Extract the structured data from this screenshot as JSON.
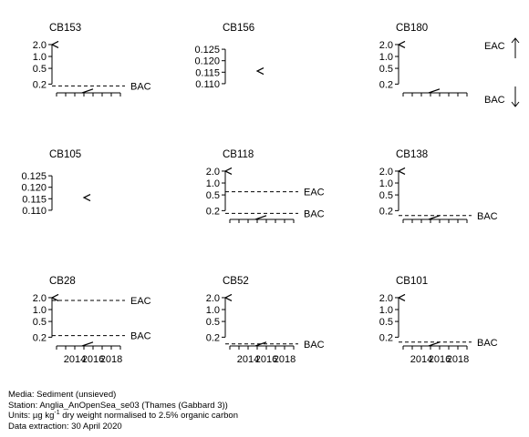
{
  "chart_data": [
    {
      "type": "line",
      "title": "CB153",
      "yscale": "log",
      "yticks": [
        0.2,
        0.5,
        1.0,
        2.0
      ],
      "ytick_labels": [
        "0.2",
        "0.5",
        "1.0",
        "2.0"
      ],
      "ylim": [
        0.12,
        2.6
      ],
      "xlim": [
        2011.5,
        2019.5
      ],
      "xticks": [
        2012,
        2013,
        2014,
        2015,
        2016,
        2017,
        2018,
        2019
      ],
      "xtick_labels": [],
      "xlabeled": false,
      "reference_lines": [
        {
          "name": "BAC",
          "value": 0.18
        }
      ],
      "series": [
        {
          "x": [
            2011.5,
            2012.2
          ],
          "y": [
            2.0,
            2.0
          ],
          "marker": "less-than"
        },
        {
          "x": [
            2014.8,
            2016.0
          ],
          "y": [
            0.12,
            0.15
          ],
          "marker": "none"
        }
      ],
      "arrows": []
    },
    {
      "type": "line",
      "title": "CB156",
      "yscale": "linear",
      "yticks": [
        0.11,
        0.115,
        0.12,
        0.125
      ],
      "ytick_labels": [
        "0.110",
        "0.115",
        "0.120",
        "0.125"
      ],
      "ylim": [
        0.106,
        0.129
      ],
      "xlim": [
        2011.5,
        2019.5
      ],
      "xticks": [],
      "xtick_labels": [],
      "xlabeled": false,
      "reference_lines": [],
      "series": [
        {
          "x": [
            2015.0
          ],
          "y": [
            0.1155
          ],
          "marker": "less-than"
        }
      ],
      "arrows": []
    },
    {
      "type": "line",
      "title": "CB180",
      "yscale": "log",
      "yticks": [
        0.2,
        0.5,
        1.0,
        2.0
      ],
      "ytick_labels": [
        "0.2",
        "0.5",
        "1.0",
        "2.0"
      ],
      "ylim": [
        0.12,
        2.6
      ],
      "xlim": [
        2011.5,
        2019.5
      ],
      "xticks": [
        2012,
        2013,
        2014,
        2015,
        2016,
        2017,
        2018,
        2019
      ],
      "xtick_labels": [],
      "xlabeled": false,
      "reference_lines": [],
      "series": [
        {
          "x": [
            2011.5,
            2012.2
          ],
          "y": [
            2.0,
            2.0
          ],
          "marker": "less-than"
        },
        {
          "x": [
            2014.8,
            2016.0
          ],
          "y": [
            0.12,
            0.15
          ],
          "marker": "none"
        }
      ],
      "arrows": [
        {
          "name": "EAC",
          "direction": "up"
        },
        {
          "name": "BAC",
          "direction": "down"
        }
      ]
    },
    {
      "type": "line",
      "title": "CB105",
      "yscale": "linear",
      "yticks": [
        0.11,
        0.115,
        0.12,
        0.125
      ],
      "ytick_labels": [
        "0.110",
        "0.115",
        "0.120",
        "0.125"
      ],
      "ylim": [
        0.106,
        0.129
      ],
      "xlim": [
        2011.5,
        2019.5
      ],
      "xticks": [],
      "xtick_labels": [],
      "xlabeled": false,
      "reference_lines": [],
      "series": [
        {
          "x": [
            2015.0
          ],
          "y": [
            0.1155
          ],
          "marker": "less-than"
        }
      ],
      "arrows": []
    },
    {
      "type": "line",
      "title": "CB118",
      "yscale": "log",
      "yticks": [
        0.2,
        0.5,
        1.0,
        2.0
      ],
      "ytick_labels": [
        "0.2",
        "0.5",
        "1.0",
        "2.0"
      ],
      "ylim": [
        0.12,
        2.6
      ],
      "xlim": [
        2011.5,
        2019.5
      ],
      "xticks": [
        2012,
        2013,
        2014,
        2015,
        2016,
        2017,
        2018,
        2019
      ],
      "xtick_labels": [],
      "xlabeled": false,
      "reference_lines": [
        {
          "name": "EAC",
          "value": 0.6
        },
        {
          "name": "BAC",
          "value": 0.17
        }
      ],
      "series": [
        {
          "x": [
            2011.5,
            2012.2
          ],
          "y": [
            2.0,
            2.0
          ],
          "marker": "less-than"
        },
        {
          "x": [
            2014.8,
            2016.0
          ],
          "y": [
            0.12,
            0.15
          ],
          "marker": "none"
        }
      ],
      "arrows": []
    },
    {
      "type": "line",
      "title": "CB138",
      "yscale": "log",
      "yticks": [
        0.2,
        0.5,
        1.0,
        2.0
      ],
      "ytick_labels": [
        "0.2",
        "0.5",
        "1.0",
        "2.0"
      ],
      "ylim": [
        0.12,
        2.6
      ],
      "xlim": [
        2011.5,
        2019.5
      ],
      "xticks": [
        2012,
        2013,
        2014,
        2015,
        2016,
        2017,
        2018,
        2019
      ],
      "xtick_labels": [],
      "xlabeled": false,
      "reference_lines": [
        {
          "name": "BAC",
          "value": 0.15
        }
      ],
      "series": [
        {
          "x": [
            2011.5,
            2012.2
          ],
          "y": [
            2.0,
            2.0
          ],
          "marker": "less-than"
        },
        {
          "x": [
            2014.8,
            2016.0
          ],
          "y": [
            0.12,
            0.15
          ],
          "marker": "none"
        }
      ],
      "arrows": []
    },
    {
      "type": "line",
      "title": "CB28",
      "yscale": "log",
      "yticks": [
        0.2,
        0.5,
        1.0,
        2.0
      ],
      "ytick_labels": [
        "0.2",
        "0.5",
        "1.0",
        "2.0"
      ],
      "ylim": [
        0.12,
        2.6
      ],
      "xlim": [
        2011.5,
        2019.5
      ],
      "xticks": [
        2012,
        2013,
        2014,
        2015,
        2016,
        2017,
        2018,
        2019
      ],
      "xtick_labels": [
        "2014",
        "2016",
        "2018"
      ],
      "xlabeled": true,
      "reference_lines": [
        {
          "name": "EAC",
          "value": 1.7
        },
        {
          "name": "BAC",
          "value": 0.22
        }
      ],
      "series": [
        {
          "x": [
            2011.5,
            2012.2
          ],
          "y": [
            2.0,
            2.0
          ],
          "marker": "less-than"
        },
        {
          "x": [
            2014.8,
            2016.0
          ],
          "y": [
            0.12,
            0.15
          ],
          "marker": "none"
        }
      ],
      "arrows": []
    },
    {
      "type": "line",
      "title": "CB52",
      "yscale": "log",
      "yticks": [
        0.2,
        0.5,
        1.0,
        2.0
      ],
      "ytick_labels": [
        "0.2",
        "0.5",
        "1.0",
        "2.0"
      ],
      "ylim": [
        0.12,
        2.6
      ],
      "xlim": [
        2011.5,
        2019.5
      ],
      "xticks": [
        2012,
        2013,
        2014,
        2015,
        2016,
        2017,
        2018,
        2019
      ],
      "xtick_labels": [
        "2014",
        "2016",
        "2018"
      ],
      "xlabeled": true,
      "reference_lines": [
        {
          "name": "BAC",
          "value": 0.135
        }
      ],
      "series": [
        {
          "x": [
            2011.5,
            2012.2
          ],
          "y": [
            2.0,
            2.0
          ],
          "marker": "less-than"
        },
        {
          "x": [
            2014.8,
            2016.0
          ],
          "y": [
            0.12,
            0.15
          ],
          "marker": "none"
        }
      ],
      "arrows": []
    },
    {
      "type": "line",
      "title": "CB101",
      "yscale": "log",
      "yticks": [
        0.2,
        0.5,
        1.0,
        2.0
      ],
      "ytick_labels": [
        "0.2",
        "0.5",
        "1.0",
        "2.0"
      ],
      "ylim": [
        0.12,
        2.6
      ],
      "xlim": [
        2011.5,
        2019.5
      ],
      "xticks": [
        2012,
        2013,
        2014,
        2015,
        2016,
        2017,
        2018,
        2019
      ],
      "xtick_labels": [
        "2014",
        "2016",
        "2018"
      ],
      "xlabeled": true,
      "reference_lines": [
        {
          "name": "BAC",
          "value": 0.15
        }
      ],
      "series": [
        {
          "x": [
            2011.5,
            2012.2
          ],
          "y": [
            2.0,
            2.0
          ],
          "marker": "less-than"
        },
        {
          "x": [
            2014.8,
            2016.0
          ],
          "y": [
            0.12,
            0.15
          ],
          "marker": "none"
        }
      ],
      "arrows": []
    }
  ],
  "footer": {
    "media": "Media: Sediment (unsieved)",
    "station": "Station: Anglia_AnOpenSea_se03 (Thames (Gabbard 3))",
    "units_prefix": "Units:  µg kg",
    "units_exponent": "-1",
    "units_suffix": " dry weight normalised to 2.5% organic carbon",
    "extraction": "Data extraction: 30 April 2020"
  }
}
